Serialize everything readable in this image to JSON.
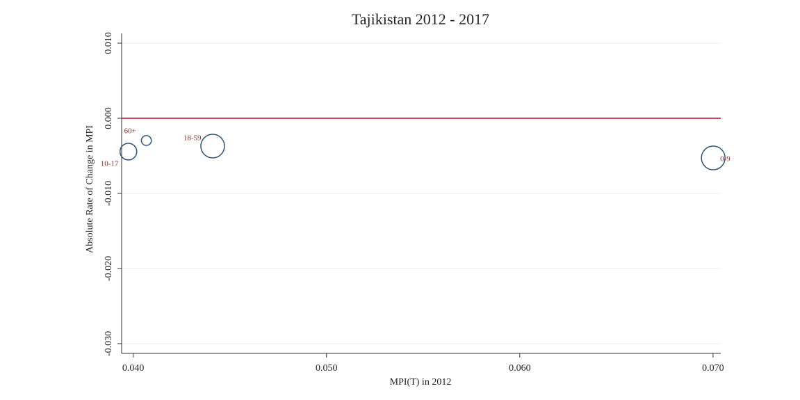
{
  "chart_data": {
    "type": "bubble",
    "title": "Tajikistan 2012 - 2017",
    "x_label": "MPI(T) in 2012",
    "y_label": "Absolute Rate of Change in MPI",
    "series": [
      {
        "labels": [
          "10-17",
          "60+",
          "18-59",
          "0-9"
        ],
        "x": [
          0.03975,
          0.04068,
          0.04411,
          0.07001
        ],
        "values": [
          -0.00444,
          -0.00296,
          -0.0037,
          -0.00528
        ],
        "sizes": [
          0.17,
          0.06,
          0.34,
          0.34
        ],
        "color": "#2e5577",
        "label_color": "#8b2a2a"
      }
    ],
    "xlim": [
      0.0394,
      0.0704
    ],
    "ylim": [
      -0.0313,
      0.0113
    ],
    "xticks": [
      {
        "value": 0.04,
        "label": "0.040"
      },
      {
        "value": 0.05,
        "label": "0.050"
      },
      {
        "value": 0.06,
        "label": "0.060"
      },
      {
        "value": 0.07,
        "label": "0.070"
      }
    ],
    "yticks": [
      {
        "value": -0.03,
        "label": "-0.030"
      },
      {
        "value": -0.02,
        "label": "-0.020"
      },
      {
        "value": -0.01,
        "label": "-0.010"
      },
      {
        "value": 0,
        "label": "0.000"
      },
      {
        "value": 0.01,
        "label": "0.010"
      }
    ],
    "reference_line": {
      "y": 0,
      "color": "#c8485a"
    },
    "grid": true
  }
}
